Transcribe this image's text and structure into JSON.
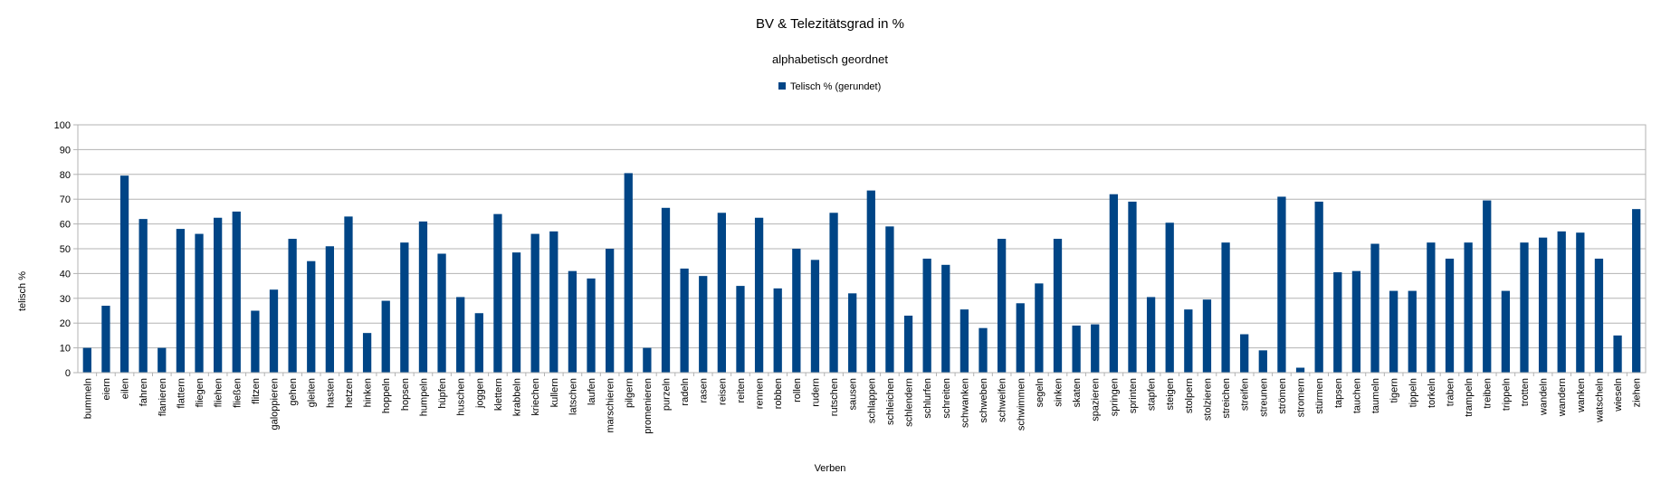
{
  "chart_data": {
    "type": "bar",
    "title": "BV & Telezitätsgrad in %",
    "subtitle": "alphabetisch geordnet",
    "xlabel": "Verben",
    "ylabel": "telisch %",
    "ylim": [
      0,
      100
    ],
    "yticks": [
      0,
      10,
      20,
      30,
      40,
      50,
      60,
      70,
      80,
      90,
      100
    ],
    "grid": true,
    "legend_position": "top-center",
    "series": [
      {
        "name": "Telisch % (gerundet)",
        "color": "#004586",
        "values": [
          10,
          27,
          79.5,
          62,
          10,
          58,
          56,
          62.5,
          65,
          25,
          33.5,
          54,
          45,
          51,
          63,
          16,
          29,
          52.5,
          61,
          48,
          30.5,
          24,
          64,
          48.5,
          56,
          57,
          41,
          38,
          50,
          80.5,
          10,
          66.5,
          42,
          39,
          64.5,
          35,
          62.5,
          34,
          50,
          45.5,
          64.5,
          32,
          73.5,
          59,
          23,
          46,
          43.5,
          25.5,
          18,
          54,
          28,
          36,
          54,
          19,
          19.5,
          72,
          69,
          30.5,
          60.5,
          25.5,
          29.5,
          52.5,
          15.5,
          9,
          71,
          2,
          69,
          40.5,
          41,
          52,
          33,
          33,
          52.5,
          46,
          52.5,
          69.5,
          33,
          52.5,
          54.5,
          57,
          56.5,
          46,
          15,
          66
        ]
      }
    ],
    "categories": [
      "bummeln",
      "eiern",
      "eilen",
      "fahren",
      "flanieren",
      "flattern",
      "fliegen",
      "fliehen",
      "fließen",
      "flitzen",
      "galoppieren",
      "gehen",
      "gleiten",
      "hasten",
      "hetzen",
      "hinken",
      "hoppeln",
      "hopsen",
      "humpeln",
      "hüpfen",
      "huschen",
      "joggen",
      "klettern",
      "krabbeln",
      "kriechen",
      "kullern",
      "latschen",
      "laufen",
      "marschieren",
      "pilgern",
      "promenieren",
      "purzeln",
      "radeln",
      "rasen",
      "reisen",
      "reiten",
      "rennen",
      "robben",
      "rollen",
      "rudern",
      "rutschen",
      "sausen",
      "schlappen",
      "schleichen",
      "schlendern",
      "schlurfen",
      "schreiten",
      "schwanken",
      "schweben",
      "schweifen",
      "schwimmen",
      "segeln",
      "sinken",
      "skaten",
      "spazieren",
      "springen",
      "sprinten",
      "stapfen",
      "steigen",
      "stolpern",
      "stolzieren",
      "streichen",
      "streifen",
      "streunen",
      "strömen",
      "stromern",
      "stürmen",
      "tapsen",
      "tauchen",
      "taumeln",
      "tigern",
      "tippeln",
      "torkeln",
      "traben",
      "trampeln",
      "treiben",
      "trippeln",
      "trotten",
      "wandeln",
      "wandern",
      "wanken",
      "watscheln",
      "wieseln",
      "ziehen"
    ]
  }
}
